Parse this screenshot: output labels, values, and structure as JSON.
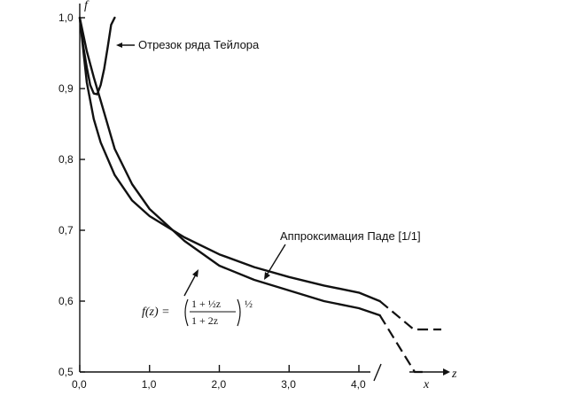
{
  "chart_data": {
    "type": "line",
    "xlabel": "z",
    "x_axis_extra_label": "x",
    "ylabel": "f",
    "xlim": [
      0,
      4.5
    ],
    "ylim": [
      0.5,
      1.0
    ],
    "x_ticks": [
      0.0,
      1.0,
      2.0,
      3.0,
      4.0
    ],
    "x_tick_labels": [
      "0,0",
      "1,0",
      "2,0",
      "3,0",
      "4,0"
    ],
    "y_ticks": [
      0.5,
      0.6,
      0.7,
      0.8,
      0.9,
      1.0
    ],
    "y_tick_labels": [
      "0,5",
      "0,6",
      "0,7",
      "0,8",
      "0,9",
      "1,0"
    ],
    "grid": false,
    "series": [
      {
        "name": "Отрезок ряда Тейлора",
        "x": [
          0.0,
          0.05,
          0.1,
          0.15,
          0.2,
          0.25,
          0.3,
          0.35,
          0.4,
          0.45,
          0.5
        ],
        "y": [
          1.0,
          0.96,
          0.93,
          0.905,
          0.893,
          0.892,
          0.905,
          0.928,
          0.958,
          0.99,
          1.0
        ]
      },
      {
        "name": "Аппроксимация Паде [1/1]",
        "x": [
          0.0,
          0.1,
          0.2,
          0.3,
          0.5,
          0.75,
          1.0,
          1.5,
          2.0,
          2.5,
          3.0,
          3.5,
          4.0,
          4.3
        ],
        "y": [
          1.0,
          0.909,
          0.857,
          0.824,
          0.778,
          0.742,
          0.72,
          0.69,
          0.666,
          0.648,
          0.634,
          0.622,
          0.612,
          0.6
        ]
      },
      {
        "name": "f(z) = ((1 + ½z)/(1 + 2z))^½",
        "x": [
          0.0,
          0.1,
          0.2,
          0.3,
          0.5,
          0.75,
          1.0,
          1.5,
          2.0,
          2.5,
          3.0,
          3.5,
          4.0,
          4.3
        ],
        "y": [
          1.0,
          0.953,
          0.916,
          0.883,
          0.815,
          0.765,
          0.73,
          0.685,
          0.65,
          0.63,
          0.615,
          0.6,
          0.59,
          0.58
        ]
      }
    ],
    "asymptotes": [
      {
        "series": "Аппроксимация Паде [1/1]",
        "y": 0.56
      },
      {
        "series": "f(z) = ((1 + ½z)/(1 + 2z))^½",
        "y": 0.5
      }
    ],
    "annotations": {
      "taylor": "Отрезок ряда Тейлора",
      "pade": "Аппроксимация Паде [1/1]",
      "formula_lhs": "f(z) =",
      "formula_num": "1 + ½z",
      "formula_den": "1 + 2z",
      "formula_exp": "½"
    }
  }
}
